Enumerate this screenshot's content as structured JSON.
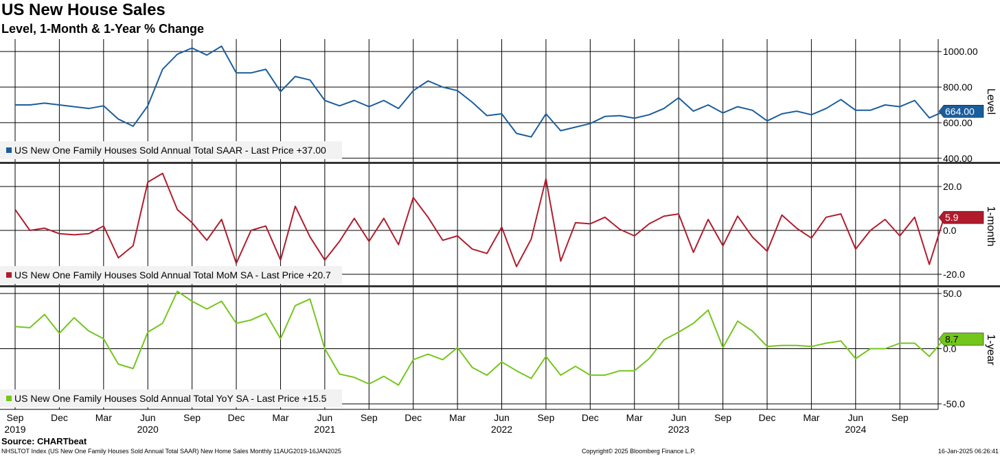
{
  "header": {
    "title": "US New House Sales",
    "subtitle": "Level, 1-Month & 1-Year % Change"
  },
  "footer": {
    "source": "Source: CHARTbeat",
    "index_note": "NHSLTOT Index (US New One Family Houses Sold Annual Total SAAR) New Home Sales  Monthly 11AUG2019-16JAN2025",
    "copyright": "Copyright© 2025 Bloomberg Finance L.P.",
    "timestamp": "16-Jan-2025 06:26:41"
  },
  "colors": {
    "level": "#1a5d9c",
    "mom": "#b01c2c",
    "yoy": "#73c61b",
    "grid": "#000000",
    "divider": "#333333"
  },
  "chart_data": [
    {
      "type": "line",
      "panel": "level",
      "axis_title": "Level",
      "legend": "US New One Family Houses Sold Annual Total SAAR - Last Price +37.00",
      "ylim": [
        380,
        1070
      ],
      "yticks": [
        400,
        600,
        800,
        1000
      ],
      "ytick_labels": [
        "400.00",
        "600.00",
        "800.00",
        "1000.00"
      ],
      "last_value": 664,
      "last_label": "664.00",
      "values": [
        700,
        700,
        710,
        700,
        690,
        680,
        695,
        620,
        580,
        695,
        900,
        985,
        1020,
        980,
        1030,
        880,
        880,
        900,
        775,
        860,
        840,
        725,
        695,
        725,
        690,
        725,
        680,
        780,
        835,
        800,
        780,
        715,
        640,
        650,
        540,
        520,
        650,
        555,
        575,
        595,
        635,
        640,
        625,
        645,
        680,
        740,
        665,
        700,
        655,
        690,
        670,
        610,
        650,
        665,
        645,
        680,
        730,
        670,
        670,
        700,
        690,
        725,
        627,
        664
      ]
    },
    {
      "type": "line",
      "panel": "mom",
      "axis_title": "1-month",
      "legend": "US New One Family Houses Sold Annual Total MoM SA - Last Price +20.7",
      "ylim": [
        -25,
        30
      ],
      "yticks": [
        -20,
        0,
        20
      ],
      "ytick_labels": [
        "-20.0",
        "0.0",
        "20.0"
      ],
      "last_value": 5.9,
      "last_label": "5.9",
      "values": [
        9.5,
        0,
        1,
        -1.5,
        -2,
        -1.5,
        2,
        -12.5,
        -7,
        22,
        26,
        9.5,
        3.5,
        -4.5,
        5,
        -15,
        0,
        2,
        -13.5,
        11,
        -3,
        -13.5,
        -5,
        5.5,
        -5,
        5.5,
        -6.5,
        15,
        6,
        -4.5,
        -2.5,
        -8.5,
        -10.5,
        1.5,
        -16.5,
        -4,
        23.5,
        -14,
        3.5,
        3,
        6,
        0.5,
        -2.5,
        3,
        6.5,
        7.5,
        -10,
        5,
        -7,
        6.5,
        -3,
        -9.5,
        7,
        1,
        -3.5,
        6,
        7.5,
        -8.5,
        0,
        5,
        -2.5,
        6,
        -15.5,
        5.9
      ]
    },
    {
      "type": "line",
      "panel": "yoy",
      "axis_title": "1-year",
      "legend": "US New One Family Houses Sold Annual Total YoY SA - Last Price +15.5",
      "ylim": [
        -55,
        55
      ],
      "yticks": [
        -50,
        0,
        50
      ],
      "ytick_labels": [
        "-50.0",
        "0.0",
        "50.0"
      ],
      "last_value": 8.7,
      "last_label": "8.7",
      "values": [
        20,
        19,
        31,
        14,
        28,
        16,
        9,
        -14,
        -18,
        15,
        23,
        52,
        43,
        36,
        43,
        23,
        26,
        32,
        9,
        39,
        45,
        0,
        -23,
        -26,
        -32,
        -25,
        -33,
        -10,
        -5,
        -10,
        1,
        -17,
        -24,
        -12,
        -20,
        -27,
        -7,
        -24,
        -16,
        -24,
        -24,
        -20,
        -20,
        -9,
        8,
        15,
        23,
        35,
        1,
        25,
        16,
        2,
        3,
        3,
        2,
        5,
        7,
        -9,
        0,
        0,
        5,
        5,
        -7,
        8.7
      ]
    },
    {
      "type": "axis",
      "x_tick_labels": [
        "Sep",
        "Dec",
        "Mar",
        "Jun",
        "Sep",
        "Dec",
        "Mar",
        "Jun",
        "Sep",
        "Dec",
        "Mar",
        "Jun",
        "Sep",
        "Dec",
        "Mar",
        "Jun",
        "Sep",
        "Dec",
        "Mar",
        "Jun",
        "Sep"
      ],
      "year_labels": [
        "2019",
        "2020",
        "2021",
        "2022",
        "2023",
        "2024"
      ],
      "x_start": "Sep 2019",
      "x_end": "Dec 2024"
    }
  ]
}
